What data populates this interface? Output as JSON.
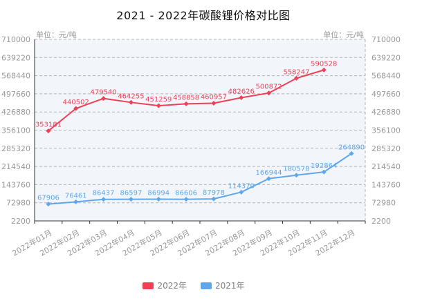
{
  "title": "2021 - 2022年碳酸锂价格对比图",
  "axes": {
    "unit_label_left": "单位：元/吨",
    "unit_label_right": "单位：元/吨"
  },
  "legend": {
    "items": [
      {
        "label": "2022年",
        "color": "#ef4056"
      },
      {
        "label": "2021年",
        "color": "#5ea7ec"
      }
    ]
  },
  "colors": {
    "red_series": "#ef4056",
    "blue_series": "#5ea7ec",
    "axis_text": "#999999",
    "axis_line": "#333333",
    "grid_line": "#b3b3b3",
    "plot_background": "#f2f6fa",
    "title_text": "#111111"
  },
  "chart_data": {
    "type": "line",
    "title": "2021 - 2022年碳酸锂价格对比图",
    "categories": [
      "2022年01月",
      "2022年02月",
      "2022年03月",
      "2022年04月",
      "2022年05月",
      "2022年06月",
      "2022年07月",
      "2022年08月",
      "2022年09月",
      "2022年10月",
      "2022年11月",
      "2022年12月"
    ],
    "series": [
      {
        "name": "2022年",
        "color": "#ef4056",
        "values": [
          353181,
          440502,
          479540,
          464255,
          451259,
          458858,
          460957,
          482626,
          500872,
          558247,
          590528
        ]
      },
      {
        "name": "2021年",
        "color": "#5ea7ec",
        "values": [
          67906,
          76461,
          86437,
          86597,
          86994,
          86606,
          87978,
          114370,
          166944,
          180578,
          192864,
          264890
        ]
      }
    ],
    "ylabel": "单位：元/吨",
    "ylim": [
      2200,
      710000
    ],
    "y_ticks": [
      2200,
      72980,
      143760,
      214540,
      285320,
      356100,
      426880,
      497660,
      568440,
      639220,
      710000
    ],
    "dual_axis": true,
    "grid": "horizontal-dashed",
    "data_labels": true,
    "legend_position": "bottom"
  }
}
